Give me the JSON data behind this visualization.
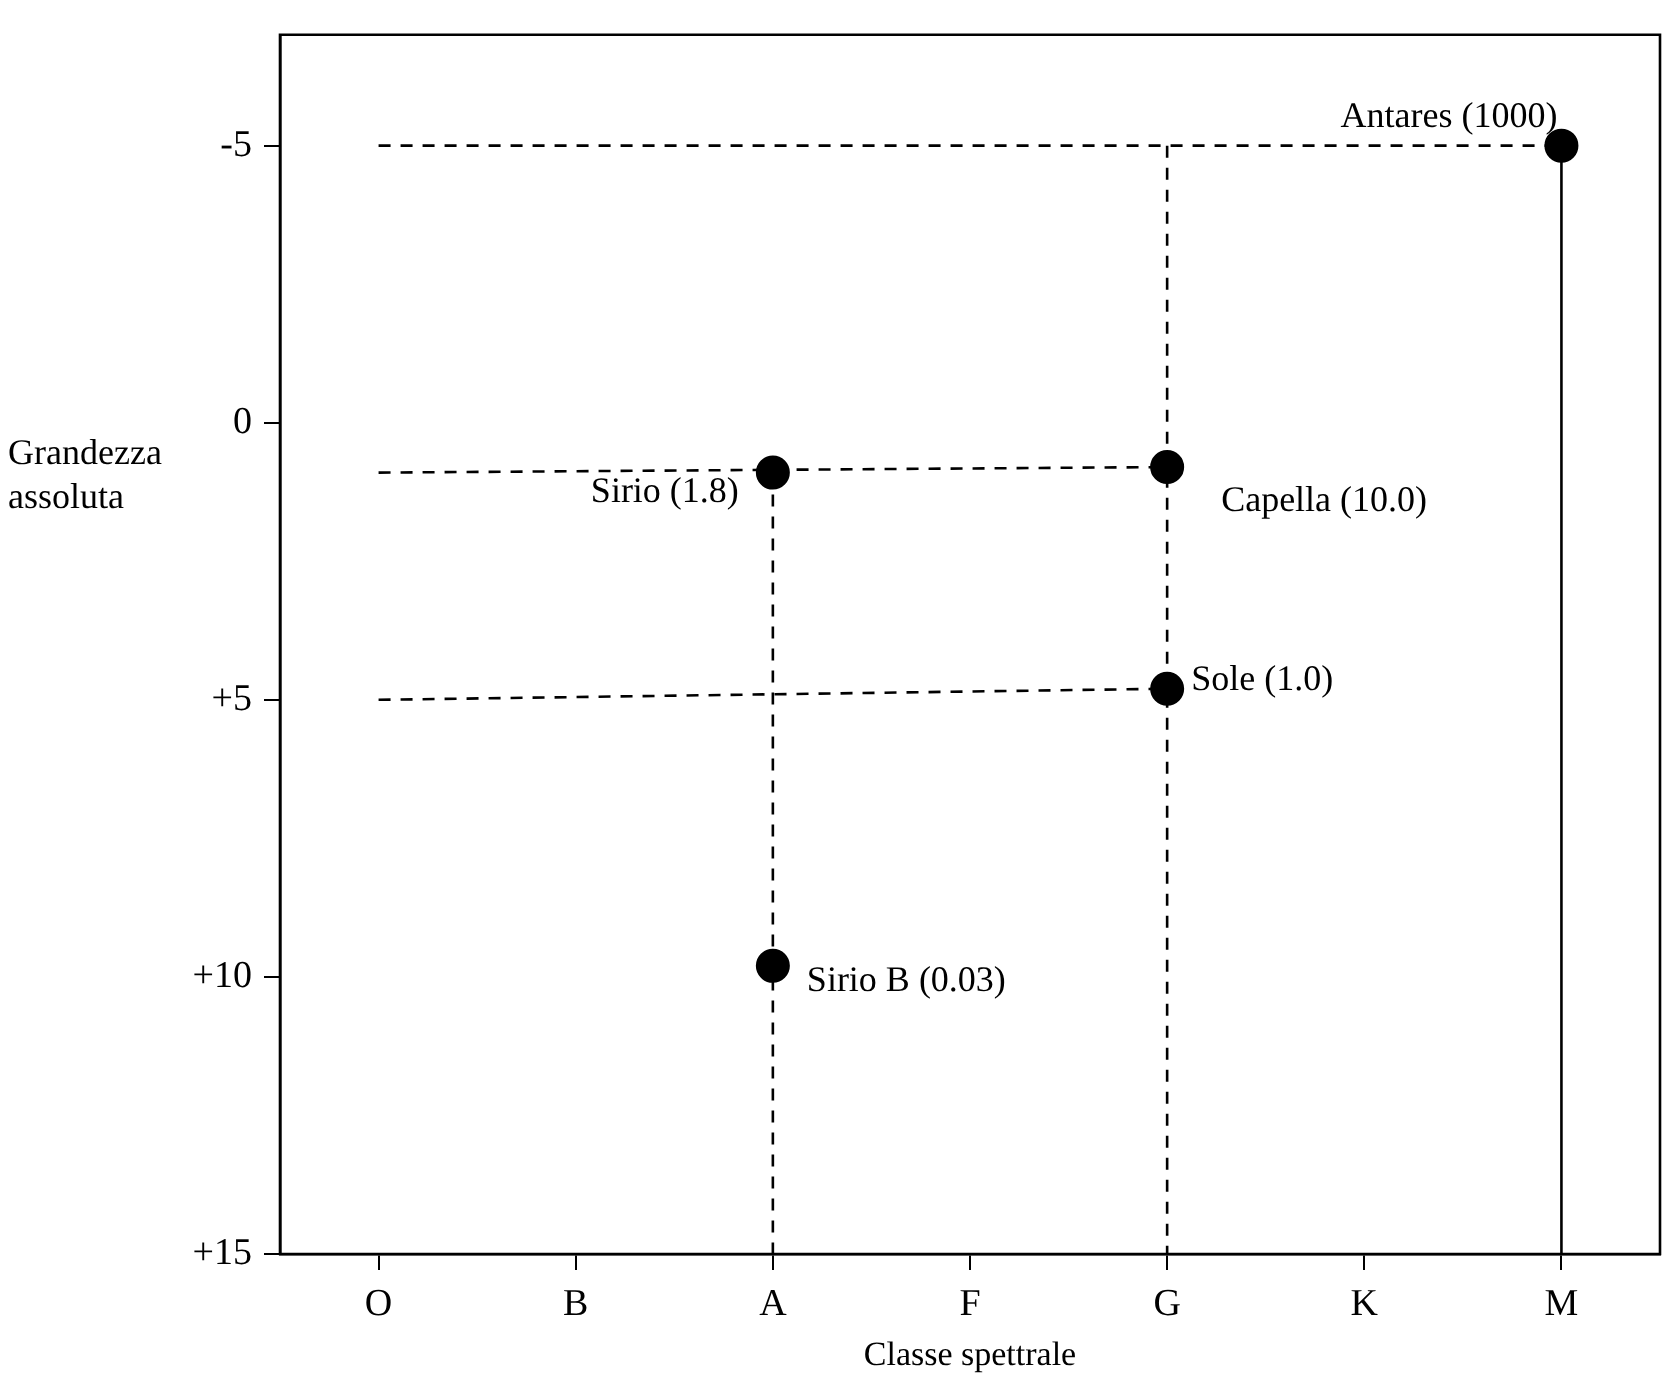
{
  "chart_data": {
    "type": "scatter",
    "xlabel": "Classe spettrale",
    "ylabel": "Grandezza assoluta",
    "categories": [
      "O",
      "B",
      "A",
      "F",
      "G",
      "K",
      "M"
    ],
    "ylim": [
      15,
      -7
    ],
    "yticks": [
      -5,
      0,
      {
        "value": 5,
        "label": "+5"
      },
      {
        "value": 10,
        "label": "+10"
      },
      {
        "value": 15,
        "label": "+15"
      }
    ],
    "series": [
      {
        "type": "line",
        "color": "#000000",
        "line_style": "solid",
        "marker": "none",
        "x": [
          "M",
          "M"
        ],
        "values": [
          -5,
          15
        ]
      },
      {
        "type": "line",
        "color": "#000000",
        "line_style": "dashed",
        "marker": "none",
        "x": [
          "O",
          "M"
        ],
        "values": [
          -5,
          -5
        ]
      },
      {
        "type": "line",
        "color": "#000000",
        "line_style": "dashed",
        "marker": "none",
        "x": [
          "G",
          "G"
        ],
        "values": [
          -5,
          15
        ]
      },
      {
        "type": "line",
        "color": "#000000",
        "line_style": "dashed",
        "marker": "none",
        "x": [
          "O",
          "G"
        ],
        "values": [
          0.9,
          0.8
        ]
      },
      {
        "type": "line",
        "color": "#000000",
        "line_style": "dashed",
        "marker": "none",
        "x": [
          "O",
          "G"
        ],
        "values": [
          5,
          4.8
        ]
      },
      {
        "type": "line",
        "color": "#000000",
        "line_style": "dashed",
        "marker": "none",
        "x": [
          "A",
          "A"
        ],
        "values": [
          0.9,
          15
        ]
      },
      {
        "color": "#000000",
        "marker": "circle",
        "x": [
          "M",
          "A",
          "G",
          "G",
          "A"
        ],
        "values": [
          -5,
          0.9,
          0.8,
          4.8,
          9.8
        ]
      }
    ],
    "annotations": [
      {
        "text": "Antares (1000)",
        "x": "M",
        "y": -5
      },
      {
        "text": "Sirio (1.8)",
        "x": "A",
        "y": 0.9
      },
      {
        "text": "Capella (10.0)",
        "x": "G",
        "y": 0.8
      },
      {
        "text": "Sole (1.0)",
        "x": "G",
        "y": 4.8
      },
      {
        "text": "Sirio B (0.03)",
        "x": "A",
        "y": 9.8
      }
    ]
  }
}
